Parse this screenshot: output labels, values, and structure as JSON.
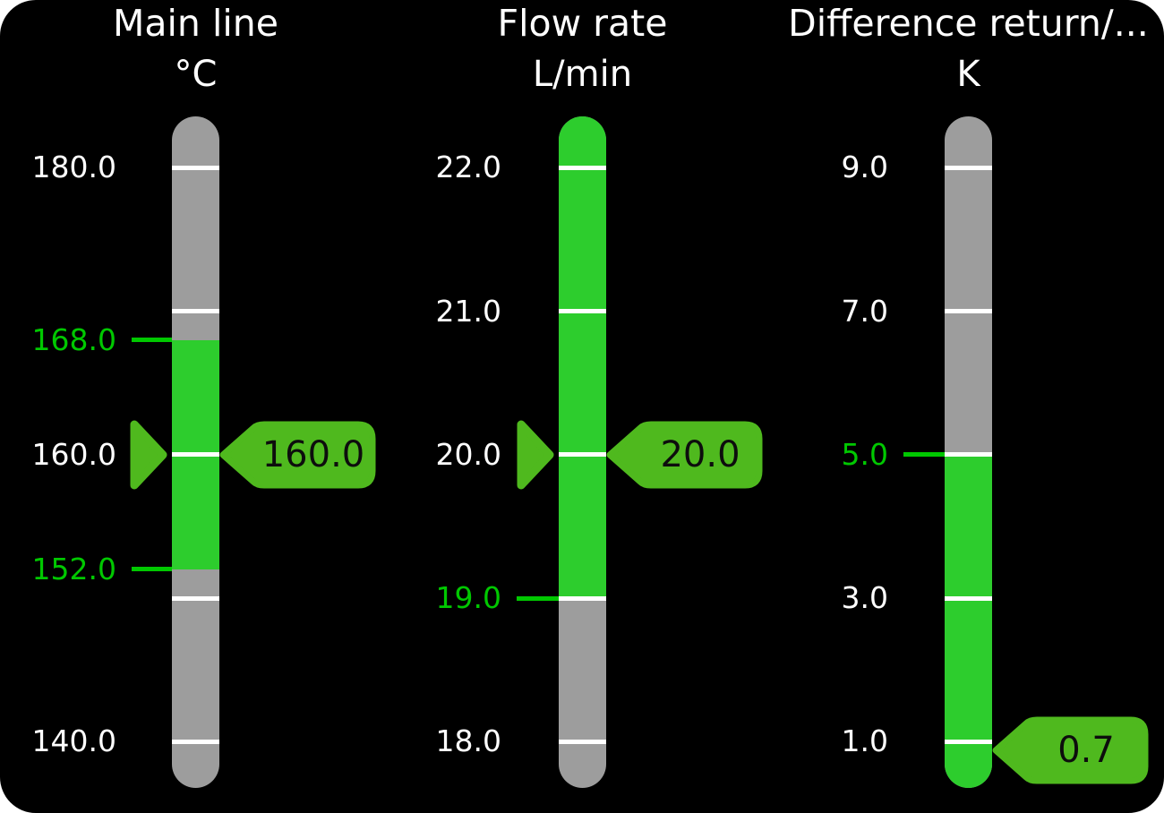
{
  "colors": {
    "outer_bg": "#ffffff",
    "screen_bg": "#000000",
    "bar_gray": "#9d9d9d",
    "bar_green": "#2dcd2d",
    "tick_white": "#ffffff",
    "label_white": "#ffffff",
    "limit_green": "#00c800",
    "marker_green": "#4fb91e",
    "badge_text": "#0d0d0d"
  },
  "gauges": [
    {
      "id": "main-line",
      "title": "Main line",
      "unit": "°C",
      "value": 160.0,
      "value_label": "160.0",
      "show_marker": true,
      "scale": {
        "ticks": [
          {
            "value": 180,
            "label": "180.0"
          },
          {
            "value": 170,
            "label": null
          },
          {
            "value": 160,
            "label": "160.0"
          },
          {
            "value": 150,
            "label": null
          },
          {
            "value": 140,
            "label": "140.0"
          }
        ]
      },
      "limits": [
        {
          "value": 168.0,
          "label": "168.0"
        },
        {
          "value": 152.0,
          "label": "152.0"
        }
      ],
      "green_zone": {
        "from_value": 152.0,
        "to_value": 168.0
      }
    },
    {
      "id": "flow-rate",
      "title": "Flow rate",
      "unit": "L/min",
      "value": 20.0,
      "value_label": "20.0",
      "show_marker": true,
      "scale": {
        "ticks": [
          {
            "value": 22,
            "label": "22.0"
          },
          {
            "value": 21,
            "label": "21.0"
          },
          {
            "value": 20,
            "label": "20.0"
          },
          {
            "value": 19,
            "label": null
          },
          {
            "value": 18,
            "label": "18.0"
          }
        ]
      },
      "limits": [
        {
          "value": 19.0,
          "label": "19.0"
        }
      ],
      "green_zone": {
        "from_value": 19.0,
        "to_value": "bar-top"
      }
    },
    {
      "id": "difference-return",
      "title": "Difference return/...",
      "unit": "K",
      "value": 0.7,
      "value_label": "0.7",
      "show_marker": false,
      "scale": {
        "ticks": [
          {
            "value": 9,
            "label": "9.0"
          },
          {
            "value": 7,
            "label": "7.0"
          },
          {
            "value": 5,
            "label": null
          },
          {
            "value": 3,
            "label": "3.0"
          },
          {
            "value": 1,
            "label": "1.0"
          }
        ]
      },
      "limits": [
        {
          "value": 5.0,
          "label": "5.0"
        }
      ],
      "green_zone": {
        "from_value": "bar-bottom",
        "to_value": 5.0
      }
    }
  ]
}
